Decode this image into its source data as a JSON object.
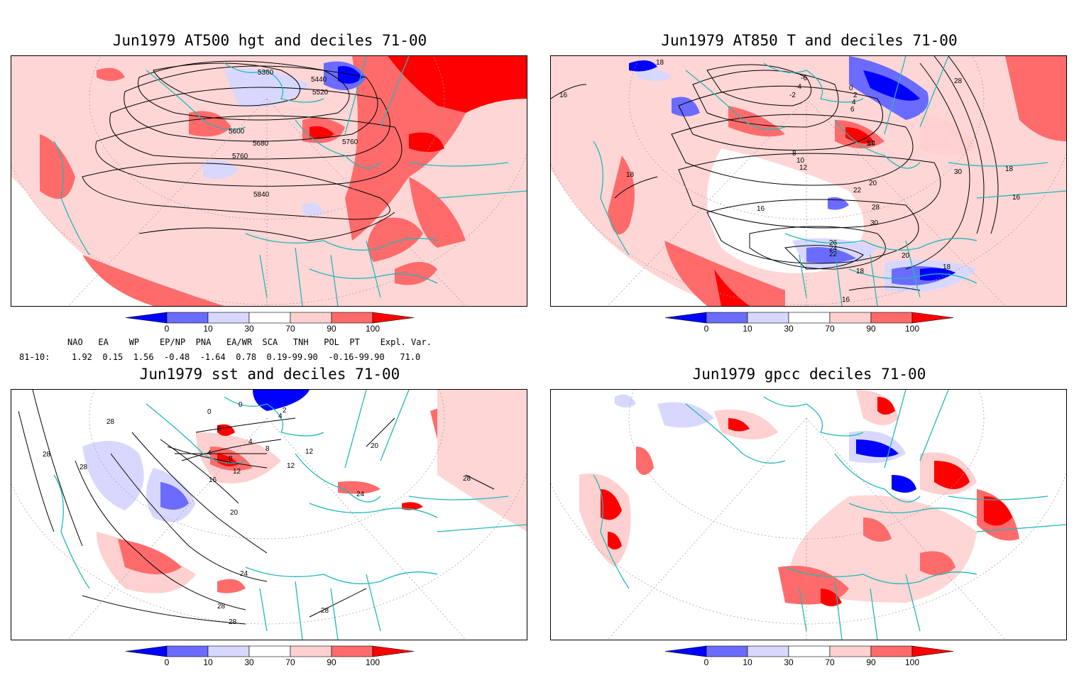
{
  "panels": [
    {
      "title": "Jun1979 AT500 hgt and deciles 71-00",
      "contour_labels": [
        "5360",
        "5440",
        "5520",
        "5600",
        "5680",
        "5760",
        "5760",
        "5840"
      ]
    },
    {
      "title": "Jun1979 AT850 T and deciles 71-00",
      "contour_labels": [
        "18",
        "16",
        "-6",
        "-4",
        "-2",
        "0",
        "2",
        "4",
        "6",
        "8",
        "10",
        "12",
        "14",
        "16",
        "18",
        "20",
        "22",
        "28",
        "30",
        "28",
        "18",
        "16",
        "30",
        "26",
        "24",
        "22",
        "20",
        "18",
        "16",
        "18",
        "14"
      ]
    },
    {
      "title": "Jun1979 sst and deciles 71-00",
      "contour_labels": [
        "28",
        "28",
        "28",
        "0",
        "0",
        "0",
        "4",
        "4",
        "8",
        "8",
        "12",
        "12",
        "16",
        "20",
        "20",
        "24",
        "24",
        "28",
        "28",
        "28",
        "28",
        "12",
        "4",
        "2"
      ]
    },
    {
      "title": "Jun1979 gpcc deciles 71-00",
      "contour_labels": []
    }
  ],
  "colorbar": {
    "ticks": [
      "0",
      "10",
      "30",
      "70",
      "90",
      "100"
    ],
    "colors": [
      "#0000ff",
      "#6b6bff",
      "#d8d8ff",
      "#ffffff",
      "#ffd0d0",
      "#ff6b6b",
      "#ff0000"
    ]
  },
  "indices": {
    "header": "NAO   EA    WP    EP/NP  PNA   EA/WR  SCA   TNH   POL  PT    Expl. Var.",
    "row_label": "81-10:",
    "values": "1.92  0.15  1.56  -0.48  -1.64  0.78  0.19-99.90  -0.16-99.90   71.0"
  }
}
